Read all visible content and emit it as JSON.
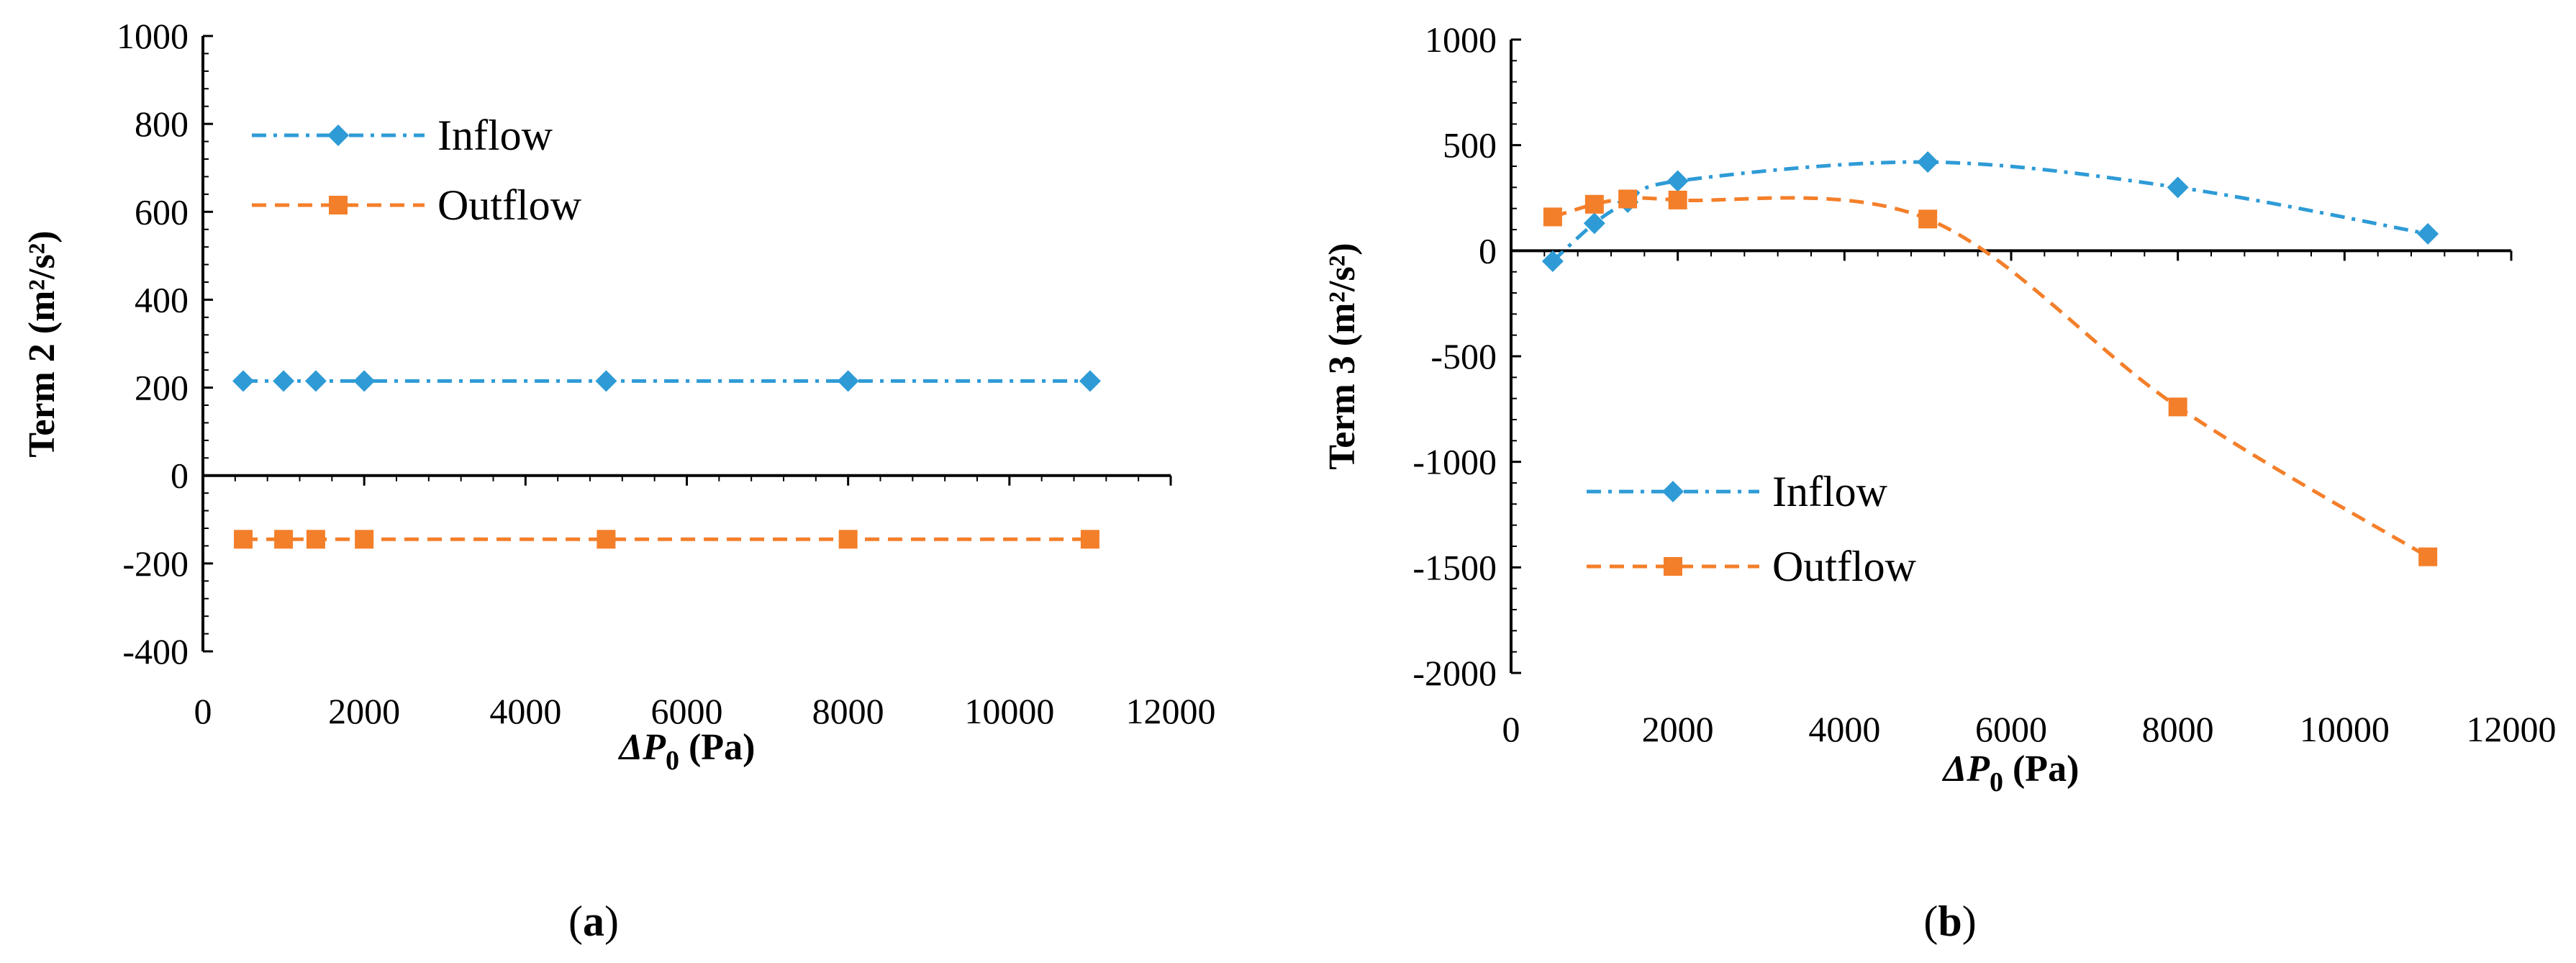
{
  "chart_data": [
    {
      "type": "line",
      "panel_label": "a",
      "xlabel": "ΔP",
      "xlabel_sub": "0",
      "xlabel_unit": " (Pa)",
      "ylabel": "Term 2 (m²/s²)",
      "xlim": [
        0,
        12000
      ],
      "ylim": [
        -400,
        1000
      ],
      "xticks": [
        0,
        2000,
        4000,
        6000,
        8000,
        10000,
        12000
      ],
      "yticks": [
        -400,
        -200,
        0,
        200,
        400,
        600,
        800,
        1000
      ],
      "xtick_labels": [
        "0",
        "2000",
        "4000",
        "6000",
        "8000",
        "10000",
        "12000"
      ],
      "ytick_labels": [
        "-400",
        "-200",
        "0",
        "200",
        "400",
        "600",
        "800",
        "1000"
      ],
      "legend_position": "top-left",
      "series": [
        {
          "name": "Inflow",
          "color": "#2E9BD6",
          "marker": "diamond",
          "dash": "dash-dot",
          "x": [
            500,
            1000,
            1400,
            2000,
            5000,
            8000,
            11000
          ],
          "y": [
            215,
            215,
            215,
            215,
            215,
            215,
            215
          ]
        },
        {
          "name": "Outflow",
          "color": "#F47F2A",
          "marker": "square",
          "dash": "dashed",
          "x": [
            500,
            1000,
            1400,
            2000,
            5000,
            8000,
            11000
          ],
          "y": [
            -145,
            -145,
            -145,
            -145,
            -145,
            -145,
            -145
          ]
        }
      ]
    },
    {
      "type": "line",
      "panel_label": "b",
      "xlabel": "ΔP",
      "xlabel_sub": "0",
      "xlabel_unit": " (Pa)",
      "ylabel": "Term 3 (m²/s²)",
      "xlim": [
        0,
        12000
      ],
      "ylim": [
        -2000,
        1000
      ],
      "xticks": [
        0,
        2000,
        4000,
        6000,
        8000,
        10000,
        12000
      ],
      "yticks": [
        -2000,
        -1500,
        -1000,
        -500,
        0,
        500,
        1000
      ],
      "xtick_labels": [
        "0",
        "2000",
        "4000",
        "6000",
        "8000",
        "10000",
        "12000"
      ],
      "ytick_labels": [
        "-2000",
        "-1500",
        "-1000",
        "-500",
        "0",
        "500",
        "1000"
      ],
      "legend_position": "bottom-left",
      "series": [
        {
          "name": "Inflow",
          "color": "#2E9BD6",
          "marker": "diamond",
          "dash": "dash-dot",
          "x": [
            500,
            1000,
            1400,
            2000,
            5000,
            8000,
            11000
          ],
          "y": [
            -50,
            130,
            230,
            330,
            420,
            300,
            80
          ]
        },
        {
          "name": "Outflow",
          "color": "#F47F2A",
          "marker": "square",
          "dash": "dashed",
          "x": [
            500,
            1000,
            1400,
            2000,
            5000,
            8000,
            11000
          ],
          "y": [
            160,
            220,
            245,
            240,
            150,
            -740,
            -1450
          ]
        }
      ]
    }
  ]
}
